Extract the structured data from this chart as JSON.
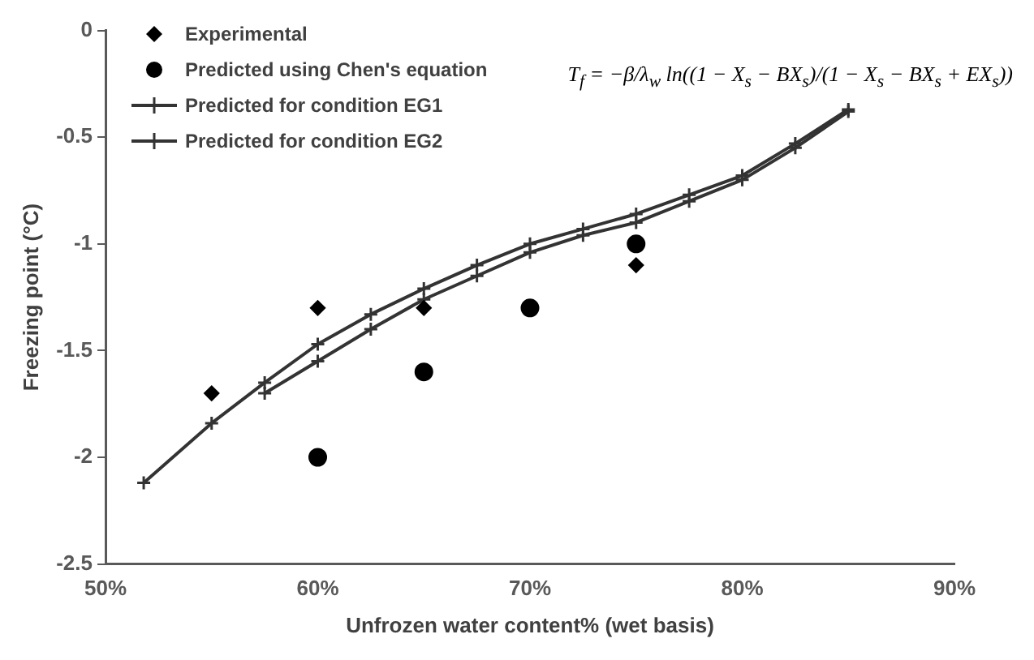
{
  "chart_data": {
    "type": "scatter",
    "xlabel": "Unfrozen water content% (wet basis)",
    "ylabel": "Freezing point (°C)",
    "xlim": [
      50,
      90
    ],
    "xticks": [
      {
        "value": 50,
        "label": "50%"
      },
      {
        "value": 60,
        "label": "60%"
      },
      {
        "value": 70,
        "label": "70%"
      },
      {
        "value": 80,
        "label": "80%"
      },
      {
        "value": 90,
        "label": "90%"
      }
    ],
    "ylim": [
      -2.5,
      0
    ],
    "yticks": [
      -2.5,
      -2,
      -1.5,
      -1,
      -0.5,
      0
    ],
    "grid": false,
    "legend": "top left",
    "annotations": [
      "T$_{f}$ = −β/λ$_{w}$ ln((1 − X$_{s}$ − BX$_{s}$)/(1 − X$_{s}$ − BX$_{s}$ + EX$_{s}$))"
    ],
    "series": [
      {
        "name": "Experimental",
        "marker": "diamond",
        "color": "#000000",
        "x": [
          55,
          60,
          65,
          75
        ],
        "values": [
          -1.7,
          -1.3,
          -1.3,
          -1.1
        ]
      },
      {
        "name": "Predicted using Chen's equation",
        "marker": "circle",
        "color": "#000000",
        "x": [
          60,
          65,
          70,
          75
        ],
        "values": [
          -2,
          -1.6,
          -1.3,
          -1
        ]
      },
      {
        "name": "Predicted for condition EG1",
        "type": "line",
        "marker": "cross",
        "color": "#333333",
        "x": [
          57.5,
          60,
          62.5,
          65,
          67.5,
          70,
          72.5,
          75,
          77.5,
          80,
          82.5,
          85
        ],
        "values": [
          -1.7,
          -1.55,
          -1.4,
          -1.26,
          -1.15,
          -1.04,
          -0.96,
          -0.9,
          -0.8,
          -0.7,
          -0.55,
          -0.38
        ]
      },
      {
        "name": "Predicted for condition EG2",
        "type": "line",
        "marker": "cross",
        "color": "#333333",
        "x": [
          51.8,
          55,
          57.5,
          60,
          62.5,
          65,
          67.5,
          70,
          72.5,
          75,
          77.5,
          80,
          82.5,
          85
        ],
        "values": [
          -2.12,
          -1.84,
          -1.65,
          -1.47,
          -1.33,
          -1.21,
          -1.1,
          -1,
          -0.93,
          -0.86,
          -0.77,
          -0.68,
          -0.53,
          -0.37
        ]
      }
    ]
  }
}
